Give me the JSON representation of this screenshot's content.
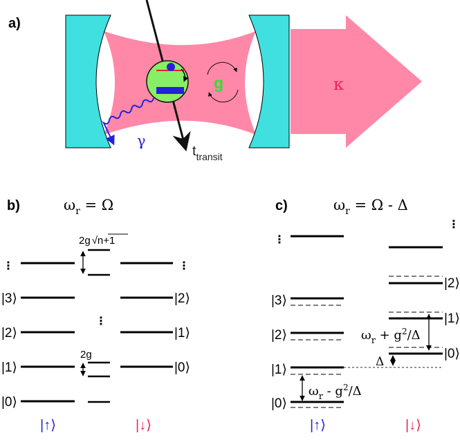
{
  "panel_a": {
    "label": "a)",
    "coupling_label": "g",
    "decay_cavity_label": "κ",
    "decay_atom_label": "γ",
    "transit_label_main": "t",
    "transit_label_sub": "transit",
    "colors": {
      "mirror": "#40e0e0",
      "cavity_field": "#ff80a0",
      "atom_bg": "#88ee66",
      "atom_marker": "#2222dd",
      "photon": "#2222dd",
      "kappa_text": "#ee2255",
      "g_text": "#33dd33"
    }
  },
  "panel_b": {
    "label": "b)",
    "title": "ωr = Ω",
    "title_main": "ω",
    "title_sub": "r",
    "title_rest": " = Ω",
    "splitting_top": "2g√n+1",
    "splitting_top_prefix": "2g",
    "splitting_top_radicand": "n+1",
    "splitting_bottom": "2g",
    "left_kets": [
      "⋮",
      "|3⟩",
      "|2⟩",
      "|1⟩",
      "|0⟩"
    ],
    "right_kets": [
      "⋮",
      "|2⟩",
      "|1⟩",
      "|0⟩"
    ],
    "center_dots": "⋮",
    "spin_up": "|↑⟩",
    "spin_down": "|↓⟩"
  },
  "panel_c": {
    "label": "c)",
    "title": "ωr = Ω - Δ",
    "title_main": "ω",
    "title_sub": "r",
    "title_rest": " = Ω - Δ",
    "left_kets": [
      "⋮",
      "|3⟩",
      "|2⟩",
      "|1⟩",
      "|0⟩"
    ],
    "right_kets": [
      "⋮",
      "|2⟩",
      "|1⟩",
      "|0⟩"
    ],
    "shift_upper": "ωr + g²/Δ",
    "shift_upper_parts": [
      "ω",
      "r",
      " + g",
      "2",
      "/Δ"
    ],
    "shift_lower": "ωr - g²/Δ",
    "shift_lower_parts": [
      "ω",
      "r",
      " - g",
      "2",
      "/Δ"
    ],
    "delta": "Δ",
    "spin_up": "|↑⟩",
    "spin_down": "|↓⟩",
    "colors": {
      "spin_up": "#2222dd",
      "spin_down": "#ee2255"
    }
  }
}
